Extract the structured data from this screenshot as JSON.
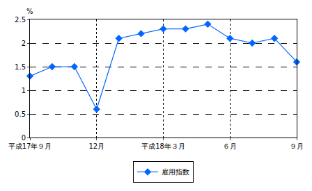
{
  "chart_data": {
    "type": "line",
    "categories": [
      "平成17年９月",
      null,
      null,
      "12月",
      null,
      null,
      "平成18年３月",
      null,
      null,
      "６月",
      null,
      null,
      "９月"
    ],
    "series": [
      {
        "name": "雇用指数",
        "color": "#0066ff",
        "values": [
          1.3,
          1.5,
          1.5,
          0.6,
          2.1,
          2.2,
          2.3,
          2.3,
          2.4,
          2.1,
          2.0,
          2.1,
          1.6
        ]
      }
    ],
    "y_label": "%",
    "ylim": [
      0,
      2.5
    ],
    "yticks": [
      0,
      0.5,
      1,
      1.5,
      2,
      2.5
    ],
    "grid": true,
    "legend": "bottom",
    "marker": "diamond",
    "line_style": "solid"
  }
}
